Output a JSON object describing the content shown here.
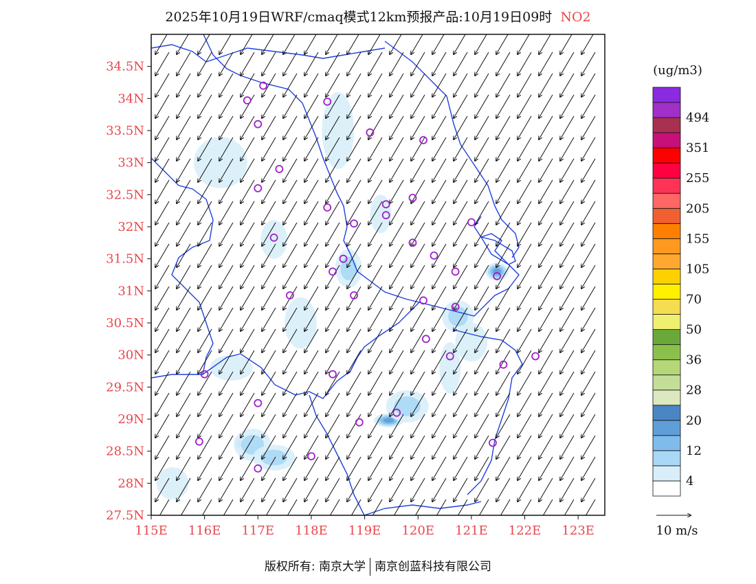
{
  "title": {
    "main": "2025年10月19日WRF/cmaq模式12km预报产品:10月19日09时",
    "pollutant": "NO2"
  },
  "colors": {
    "axis_label": "#e8464b",
    "boundary": "#1f3fe0",
    "station": "#a020c8",
    "arrow": "#111111"
  },
  "map": {
    "lon_range": [
      115,
      123.5
    ],
    "lat_range": [
      27.5,
      35
    ],
    "x_ticks": [
      "115E",
      "116E",
      "117E",
      "118E",
      "119E",
      "120E",
      "121E",
      "122E",
      "123E"
    ],
    "y_ticks": [
      "27.5N",
      "28N",
      "28.5N",
      "29N",
      "29.5N",
      "30N",
      "30.5N",
      "31N",
      "31.5N",
      "32N",
      "32.5N",
      "33N",
      "33.5N",
      "34N",
      "34.5N"
    ],
    "wind_direction": "north-northeast",
    "stations": [
      [
        117.1,
        34.2
      ],
      [
        116.8,
        33.97
      ],
      [
        118.3,
        33.95
      ],
      [
        117.0,
        33.6
      ],
      [
        119.1,
        33.47
      ],
      [
        120.1,
        33.35
      ],
      [
        117.4,
        32.9
      ],
      [
        117.0,
        32.6
      ],
      [
        119.9,
        32.45
      ],
      [
        119.4,
        32.35
      ],
      [
        118.3,
        32.3
      ],
      [
        119.4,
        32.18
      ],
      [
        118.8,
        32.05
      ],
      [
        121.0,
        32.07
      ],
      [
        117.3,
        31.83
      ],
      [
        119.9,
        31.75
      ],
      [
        120.3,
        31.55
      ],
      [
        118.6,
        31.5
      ],
      [
        118.4,
        31.3
      ],
      [
        120.7,
        31.3
      ],
      [
        121.48,
        31.23
      ],
      [
        117.6,
        30.93
      ],
      [
        118.8,
        30.93
      ],
      [
        120.1,
        30.85
      ],
      [
        120.7,
        30.75
      ],
      [
        120.15,
        30.25
      ],
      [
        120.6,
        29.98
      ],
      [
        121.6,
        29.85
      ],
      [
        122.2,
        29.98
      ],
      [
        116.0,
        29.7
      ],
      [
        118.4,
        29.7
      ],
      [
        117.0,
        29.25
      ],
      [
        119.6,
        29.1
      ],
      [
        118.9,
        28.95
      ],
      [
        115.9,
        28.65
      ],
      [
        121.4,
        28.63
      ],
      [
        118.0,
        28.42
      ],
      [
        117.0,
        28.23
      ]
    ],
    "hotspots": [
      [
        121.48,
        31.3,
        0.22,
        0.14,
        4
      ],
      [
        119.45,
        28.98,
        0.28,
        0.11,
        4
      ],
      [
        116.65,
        28.62,
        0.1,
        0.12,
        4
      ],
      [
        117.25,
        28.35,
        0.16,
        0.07,
        3
      ],
      [
        120.75,
        30.6,
        0.3,
        0.25,
        2
      ],
      [
        118.7,
        31.35,
        0.25,
        0.3,
        2
      ],
      [
        119.3,
        32.2,
        0.2,
        0.3,
        1
      ],
      [
        116.9,
        28.6,
        0.35,
        0.25,
        2
      ],
      [
        119.8,
        29.2,
        0.4,
        0.25,
        2
      ],
      [
        117.3,
        28.4,
        0.4,
        0.2,
        2
      ],
      [
        115.4,
        28.0,
        0.3,
        0.25,
        1
      ],
      [
        120.6,
        29.8,
        0.2,
        0.4,
        1
      ],
      [
        117.3,
        31.8,
        0.25,
        0.3,
        1
      ],
      [
        118.5,
        33.5,
        0.3,
        0.6,
        1
      ],
      [
        116.3,
        33.0,
        0.5,
        0.4,
        1
      ],
      [
        121.0,
        30.2,
        0.3,
        0.3,
        1
      ],
      [
        116.5,
        29.8,
        0.4,
        0.2,
        1
      ],
      [
        117.8,
        30.5,
        0.3,
        0.4,
        1
      ]
    ]
  },
  "legend": {
    "unit": "(ug/m3)",
    "colors": [
      "#ffffff",
      "#d8eefa",
      "#a8d8f5",
      "#7fbcec",
      "#5f9fd8",
      "#4a86c4",
      "#dce8c0",
      "#c4de98",
      "#b6d778",
      "#8cc04c",
      "#6aa83a",
      "#f0f070",
      "#f5dc50",
      "#fff000",
      "#ffd000",
      "#ffa830",
      "#ff9920",
      "#ff8000",
      "#f06030",
      "#ff6666",
      "#ff3355",
      "#ff0040",
      "#ff0000",
      "#c8107a",
      "#a83050",
      "#a030c8",
      "#8a2be2"
    ],
    "labels": [
      "4",
      "12",
      "20",
      "28",
      "36",
      "50",
      "70",
      "105",
      "155",
      "205",
      "255",
      "351",
      "494"
    ],
    "label_steps": [
      1,
      3,
      5,
      7,
      9,
      11,
      13,
      15,
      17,
      19,
      21,
      23,
      25
    ],
    "wind_ref": "10 m/s"
  },
  "footer": {
    "left": "版权所有: 南京大学",
    "right": "南京创蓝科技有限公司"
  }
}
